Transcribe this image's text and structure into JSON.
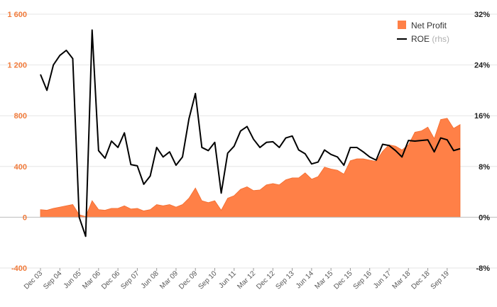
{
  "chart_data": {
    "type": "area+line",
    "title": "",
    "colors": {
      "area": "#ff8047",
      "area_edge": "#f26b2d",
      "line": "#000000",
      "grid": "#e6e6e6",
      "left_ticks": "#f07a3a",
      "right_ticks": "#222222"
    },
    "legend": {
      "placement": "top-right",
      "items": [
        {
          "label": "Net Profit",
          "suffix": ""
        },
        {
          "label": "ROE",
          "suffix": "(rhs)"
        }
      ]
    },
    "y_left": {
      "min": -400,
      "max": 1600,
      "ticks": [
        -400,
        0,
        400,
        800,
        1200,
        1600
      ],
      "tick_labels": [
        "-400",
        "0",
        "400",
        "800",
        "1 200",
        "1 600"
      ]
    },
    "y_right": {
      "min": -8,
      "max": 32,
      "ticks": [
        -8,
        0,
        8,
        16,
        24,
        32
      ],
      "tick_labels": [
        "-8%",
        "0%",
        "8%",
        "16%",
        "24%",
        "32%"
      ]
    },
    "x_tick_labels": [
      "Dec 03",
      "Sep 04",
      "Jun 05",
      "Mar 06",
      "Dec 06",
      "Sep 07",
      "Jun 08",
      "Mar 09",
      "Dec 09",
      "Sep 10",
      "Jun 11",
      "Mar 12",
      "Dec 12",
      "Sep 13",
      "Jun 14",
      "Mar 15",
      "Dec 15",
      "Sep 16",
      "Jun 17",
      "Mar 18",
      "Dec 18",
      "Sep 19"
    ],
    "periods_per_tick": 3,
    "series": [
      {
        "name": "Net Profit",
        "axis": "left",
        "type": "area",
        "values": [
          60,
          55,
          70,
          80,
          90,
          100,
          20,
          5,
          130,
          60,
          55,
          70,
          70,
          90,
          65,
          70,
          50,
          60,
          100,
          90,
          100,
          80,
          100,
          150,
          230,
          130,
          115,
          130,
          55,
          150,
          170,
          220,
          240,
          210,
          215,
          255,
          265,
          255,
          295,
          310,
          310,
          350,
          300,
          320,
          395,
          380,
          370,
          340,
          445,
          460,
          460,
          450,
          440,
          520,
          570,
          560,
          530,
          570,
          670,
          680,
          710,
          620,
          770,
          780,
          700,
          730
        ]
      },
      {
        "name": "ROE",
        "axis": "right",
        "type": "line",
        "values": [
          22.5,
          20,
          24,
          25.5,
          26.3,
          25,
          0,
          -3,
          29.5,
          10.5,
          9.3,
          12,
          11,
          13.3,
          8.3,
          8.1,
          5.2,
          6.5,
          11,
          9.5,
          10.3,
          8.2,
          9.5,
          15.5,
          19.5,
          11,
          10.5,
          11.8,
          3.8,
          10.1,
          11.2,
          13.6,
          14.3,
          12.3,
          11,
          11.8,
          11.9,
          11,
          12.5,
          12.8,
          10.6,
          10,
          8.4,
          8.7,
          10.6,
          9.9,
          9.5,
          8.2,
          11,
          11,
          10.3,
          9.5,
          9,
          11.5,
          11.3,
          10.5,
          9.5,
          12.1,
          12,
          12.1,
          12.2,
          10.3,
          12.5,
          12.2,
          10.5,
          10.8
        ]
      }
    ]
  }
}
